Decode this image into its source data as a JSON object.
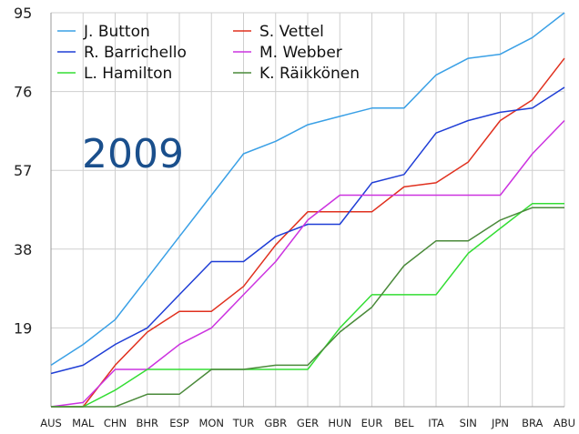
{
  "chart_data": {
    "type": "line",
    "label": "2009",
    "x": [
      "AUS",
      "MAL",
      "CHN",
      "BHR",
      "ESP",
      "MON",
      "TUR",
      "GBR",
      "GER",
      "HUN",
      "EUR",
      "BEL",
      "ITA",
      "SIN",
      "JPN",
      "BRA",
      "ABU"
    ],
    "yticks": [
      19,
      38,
      57,
      76,
      95
    ],
    "ylim": [
      0,
      95
    ],
    "grid": true,
    "legend_position": "top-left",
    "series": [
      {
        "name": "J. Button",
        "color": "#3aa0e6",
        "values": [
          10,
          15,
          21,
          31,
          41,
          51,
          61,
          64,
          68,
          70,
          72,
          72,
          80,
          84,
          85,
          89,
          95
        ]
      },
      {
        "name": "S. Vettel",
        "color": "#e0301e",
        "values": [
          0,
          0,
          10,
          18,
          23,
          23,
          29,
          39,
          47,
          47,
          47,
          53,
          54,
          59,
          69,
          74,
          84
        ]
      },
      {
        "name": "R. Barrichello",
        "color": "#1f3ed6",
        "values": [
          8,
          10,
          15,
          19,
          27,
          35,
          35,
          41,
          44,
          44,
          54,
          56,
          66,
          69,
          71,
          72,
          77
        ]
      },
      {
        "name": "M. Webber",
        "color": "#cc33e0",
        "values": [
          0,
          1,
          9,
          9,
          15,
          19,
          27,
          35,
          45,
          51,
          51,
          51,
          51,
          51,
          51,
          61,
          69
        ]
      },
      {
        "name": "L. Hamilton",
        "color": "#33dd33",
        "values": [
          0,
          0,
          4,
          9,
          9,
          9,
          9,
          9,
          9,
          19,
          27,
          27,
          27,
          37,
          43,
          49,
          49
        ]
      },
      {
        "name": "K. Räikkönen",
        "color": "#4a8a3a",
        "values": [
          0,
          0,
          0,
          3,
          3,
          9,
          9,
          10,
          10,
          18,
          24,
          34,
          40,
          40,
          45,
          48,
          48
        ]
      }
    ]
  }
}
